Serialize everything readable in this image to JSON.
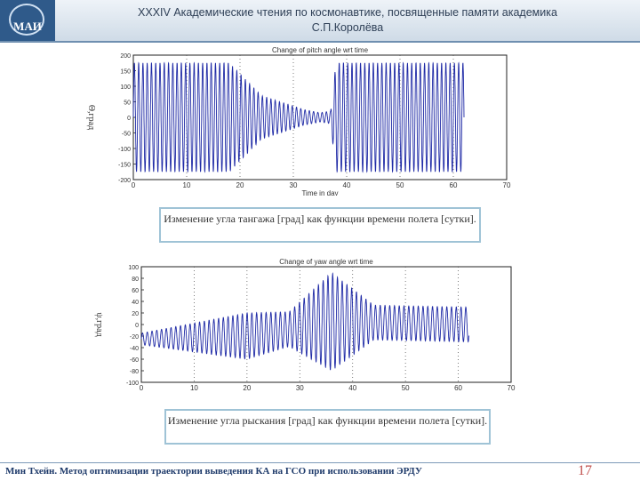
{
  "header": {
    "logo_text": "МАИ",
    "title_line1": "XXXIV Академические чтения по космонавтике, посвященные памяти академика",
    "title_line2": "С.П.Королёва"
  },
  "colors": {
    "series": "#1f2aa6",
    "grid": "#5a5a5a",
    "axis": "#222222"
  },
  "chart_data": [
    {
      "type": "line",
      "title": "Change of pitch angle wrt time",
      "xlabel": "Time in day",
      "ylabel": "Θ,град",
      "xlim": [
        0,
        70
      ],
      "ylim": [
        -200,
        200
      ],
      "xticks": [
        0,
        10,
        20,
        30,
        40,
        50,
        60,
        70
      ],
      "yticks": [
        -200,
        -150,
        -100,
        -50,
        0,
        50,
        100,
        150,
        200
      ],
      "grid": "vertical dotted",
      "series": [
        {
          "name": "pitch angle",
          "description": "fast oscillation, amplitude ~175 deg until day 18, decaying to ~20 deg around day 32-35, small bias ~+40 deg near day 37, then large oscillation ~180 deg from day 37 to day 62",
          "envelope_t": [
            0,
            18,
            24,
            32,
            35,
            37,
            38,
            62
          ],
          "envelope_a": [
            175,
            175,
            70,
            25,
            15,
            20,
            175,
            175
          ],
          "period_days": 0.8,
          "t_end": 62
        }
      ]
    },
    {
      "type": "line",
      "title": "Change of yaw angle wrt time",
      "xlabel": "",
      "ylabel": "ψ,град",
      "xlim": [
        0,
        70
      ],
      "ylim": [
        -100,
        100
      ],
      "xticks": [
        0,
        10,
        20,
        30,
        40,
        50,
        60,
        70
      ],
      "yticks": [
        -100,
        -80,
        -60,
        -40,
        -20,
        0,
        20,
        40,
        60,
        80,
        100
      ],
      "grid": "vertical dotted",
      "series": [
        {
          "name": "yaw angle",
          "description": "oscillation slightly below zero growing from ~10 deg at day 0 to ~40 deg around day 20, amplitude growing to peak ~80 deg near day 36, then steady ~30 deg oscillation to day 62",
          "envelope_t": [
            0,
            20,
            28,
            36,
            44,
            62
          ],
          "envelope_a": [
            10,
            40,
            30,
            85,
            30,
            30
          ],
          "offset_t": [
            0,
            20,
            30,
            36,
            62
          ],
          "offset_v": [
            -25,
            -20,
            -5,
            5,
            0
          ],
          "period_days": 0.9,
          "t_end": 62
        }
      ]
    }
  ],
  "captions": {
    "pitch": "Изменение угла тангажа [град] как функции времени полета [сутки].",
    "yaw": "Изменение угла рыскания [град] как функции времени полета [сутки]."
  },
  "footer": {
    "text": "Мин Тхейн. Метод оптимизации траектории выведения КА на ГСО при использовании ЭРДУ",
    "page": "17"
  }
}
